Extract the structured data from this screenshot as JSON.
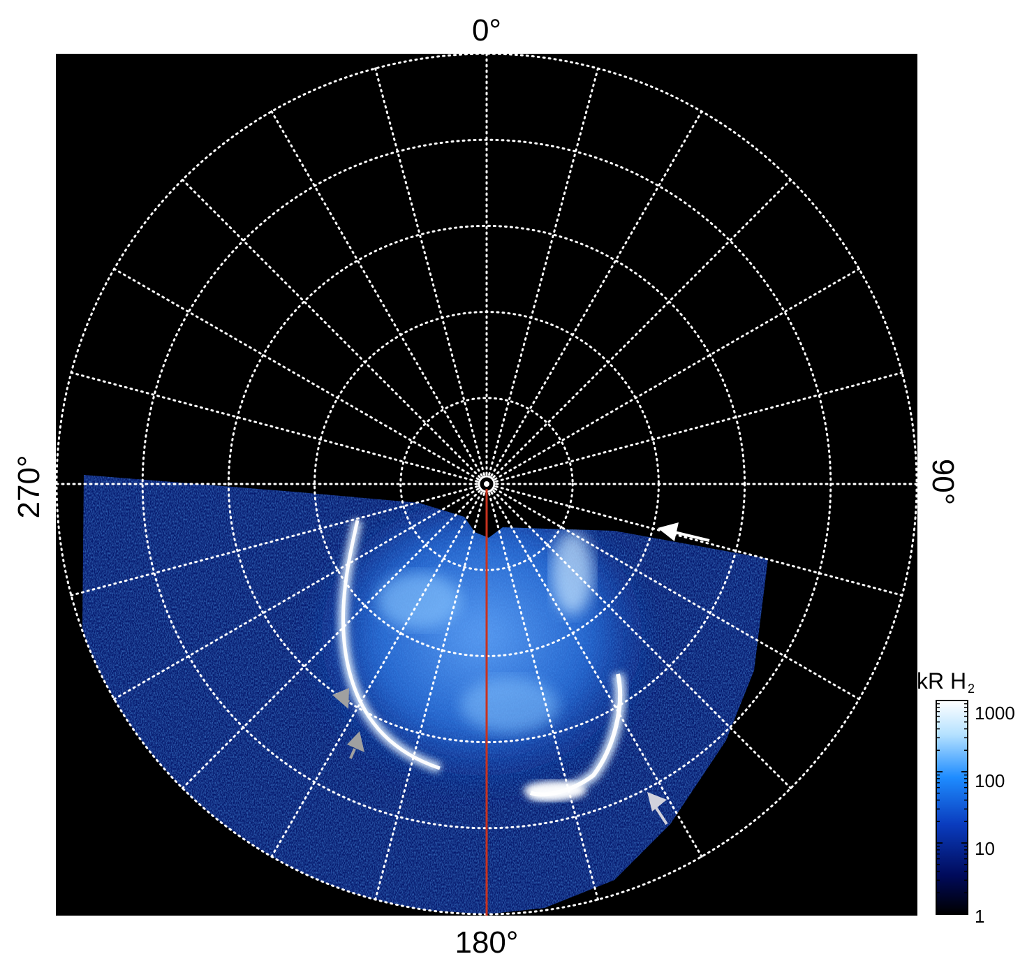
{
  "chart_data": {
    "type": "heatmap",
    "projection": "polar",
    "description_scale": "log",
    "longitude_labels": {
      "top": "0°",
      "right": "90°",
      "bottom": "180°",
      "left": "270°"
    },
    "grid": true,
    "grid_style": "dotted white",
    "colorbar": {
      "title": "kR H",
      "title_subscript": "2",
      "scale": "log",
      "range": [
        1,
        1000
      ],
      "ticks": [
        "1000",
        "100",
        "10",
        "1"
      ],
      "colors": [
        "#000000",
        "#000a5a",
        "#0a3cbe",
        "#1e8cff",
        "#b4e1ff",
        "#ffffff"
      ]
    },
    "reference_line": {
      "longitude": "180°",
      "color": "#c8321e"
    },
    "arrows": [
      {
        "color": "#ffffff"
      },
      {
        "color": "#d2d2dc"
      },
      {
        "color": "#a0a0a0"
      },
      {
        "color": "#a0a0a0"
      }
    ]
  }
}
